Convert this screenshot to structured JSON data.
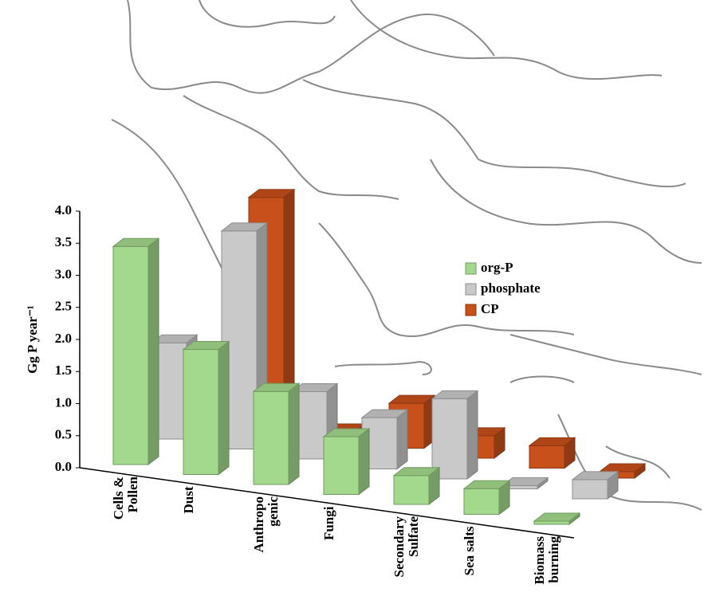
{
  "chart_data": {
    "type": "bar3d",
    "ylabel": "Gg P year⁻¹",
    "categories": [
      [
        "Cells &",
        "Pollen"
      ],
      [
        "Dust"
      ],
      [
        "Anthropo",
        "genic"
      ],
      [
        "Fungi"
      ],
      [
        "Secondary",
        "Sulfate"
      ],
      [
        "Sea salts"
      ],
      [
        "Biomass",
        "burning"
      ]
    ],
    "series": [
      {
        "name": "org-P",
        "color": "#a3d98c",
        "values": [
          3.4,
          1.95,
          1.45,
          0.9,
          0.45,
          0.4,
          0.05
        ]
      },
      {
        "name": "phosphate",
        "color": "#c9c9c9",
        "values": [
          1.5,
          3.4,
          1.05,
          0.8,
          1.25,
          0.05,
          0.3
        ]
      },
      {
        "name": "CP",
        "color": "#c8501a",
        "values": [
          0,
          3.6,
          0.1,
          0.7,
          0.35,
          0.35,
          0.1
        ]
      }
    ],
    "ylim": [
      0,
      4
    ],
    "yticks": [
      {
        "value": 0,
        "label": "0.0"
      },
      0.5,
      {
        "value": 1,
        "label": "1.0"
      },
      1.5,
      {
        "value": 2,
        "label": "2.0"
      },
      2.5,
      {
        "value": 3,
        "label": "3.0"
      },
      3.5,
      {
        "value": 4,
        "label": "4.0"
      }
    ]
  }
}
